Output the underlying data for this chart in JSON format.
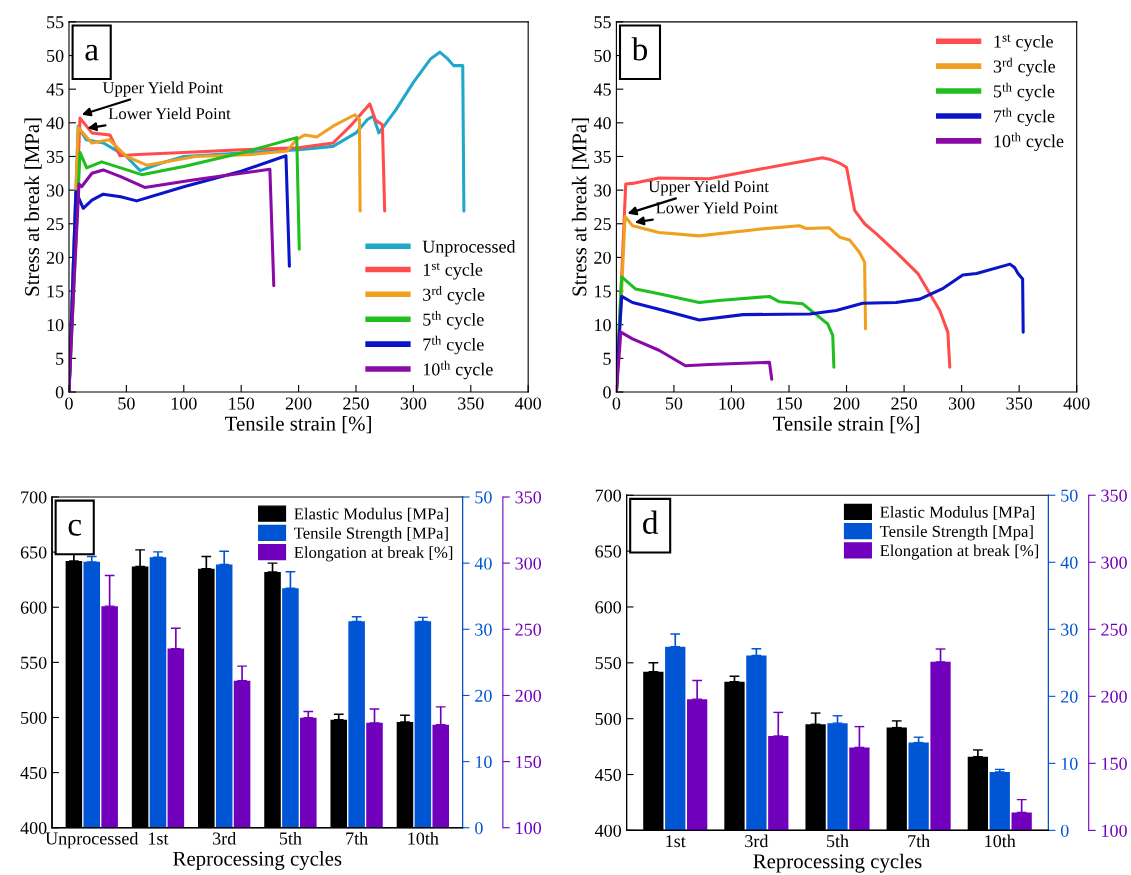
{
  "chart_data": [
    {
      "type": "line",
      "title": "a",
      "xlabel": "Tensile strain [%]",
      "ylabel": "Stress at break [MPa]",
      "xlim": [
        0,
        400
      ],
      "xticks": [
        0,
        50,
        100,
        150,
        200,
        250,
        300,
        350,
        400
      ],
      "ylim": [
        0,
        55
      ],
      "yticks": [
        0,
        5,
        10,
        15,
        20,
        25,
        30,
        35,
        40,
        45,
        50,
        55
      ],
      "legend": "bottom right",
      "annotations": [
        {
          "text": "Upper Yield Point",
          "x": 11,
          "y": 41.2
        },
        {
          "text": "Lower Yield Point",
          "x": 16,
          "y": 39.2
        }
      ],
      "series": [
        {
          "name": "Unprocessed",
          "color": "#1fa8c9",
          "x": [
            0,
            4,
            8,
            15,
            30,
            50,
            62,
            80,
            100,
            150,
            200,
            230,
            250,
            260,
            265,
            270,
            285,
            300,
            315,
            323,
            330,
            335,
            343,
            344
          ],
          "values": [
            0,
            20,
            39.5,
            37.5,
            37,
            35,
            32.9,
            34,
            35,
            35.5,
            36,
            36.5,
            38.5,
            40.5,
            41,
            38.5,
            42,
            46,
            49.5,
            50.5,
            49.5,
            48.5,
            48.5,
            26.9
          ]
        },
        {
          "name": "1$^{st}$ cycle",
          "color": "#ff4d4d",
          "x": [
            0,
            9.6,
            20,
            35.7,
            44.4,
            60,
            100,
            150,
            200,
            230,
            245,
            262,
            267,
            273,
            275
          ],
          "values": [
            0,
            40.7,
            38.5,
            38.2,
            35.1,
            35.3,
            35.6,
            36,
            36.3,
            37,
            39.5,
            42.8,
            40.4,
            39.7,
            26.9
          ]
        },
        {
          "name": "3$^{rd}$ cycle",
          "color": "#f0a01e",
          "x": [
            0,
            4,
            8,
            20,
            35,
            50,
            67.7,
            110,
            160,
            190,
            198,
            205.7,
            215.8,
            230,
            249,
            253,
            253.6
          ],
          "values": [
            0,
            20,
            39.3,
            37,
            37.5,
            35,
            33.7,
            35,
            35.3,
            35.8,
            37.5,
            38.2,
            37.9,
            39.5,
            41.2,
            40.5,
            26.9
          ]
        },
        {
          "name": "5$^{th}$ cycle",
          "color": "#1fbf1f",
          "x": [
            0,
            9.6,
            15.4,
            28.5,
            45,
            63.3,
            100,
            150,
            198.4,
            200.6
          ],
          "values": [
            0,
            35.6,
            33.3,
            34.2,
            33.3,
            32.3,
            33.5,
            35.5,
            37.8,
            21.2
          ]
        },
        {
          "name": "7$^{th}$ cycle",
          "color": "#0a14c8",
          "x": [
            0,
            3,
            6,
            12.4,
            20,
            29.8,
            45,
            59,
            100,
            150,
            189,
            192
          ],
          "values": [
            0,
            15,
            29.8,
            27.3,
            28.5,
            29.4,
            29,
            28.4,
            30.5,
            32.8,
            35.1,
            18.7
          ]
        },
        {
          "name": "10$^{th}$ cycle",
          "color": "#8a0aa8",
          "x": [
            0,
            4,
            8.7,
            11,
            20,
            29.8,
            45,
            66,
            108,
            150,
            175,
            178.4
          ],
          "values": [
            0,
            15,
            30.9,
            30.5,
            32.5,
            33,
            32,
            30.4,
            31.5,
            32.5,
            33.1,
            15.8
          ]
        }
      ]
    },
    {
      "type": "line",
      "title": "b",
      "xlabel": "Tensile strain [%]",
      "ylabel": "Stress at break [MPa]",
      "xlim": [
        0,
        400
      ],
      "xticks": [
        0,
        50,
        100,
        150,
        200,
        250,
        300,
        350,
        400
      ],
      "ylim": [
        0,
        55
      ],
      "yticks": [
        0,
        5,
        10,
        15,
        20,
        25,
        30,
        35,
        40,
        45,
        50,
        55
      ],
      "legend": "top right",
      "annotations": [
        {
          "text": "Upper Yield Point",
          "x": 9.6,
          "y": 26.5
        },
        {
          "text": "Lower Yield Point",
          "x": 16,
          "y": 25.2
        }
      ],
      "series": [
        {
          "name": "1$^{st}$ cycle",
          "color": "#ff4d4d",
          "x": [
            0,
            4,
            8.1,
            14,
            37,
            80.7,
            124,
            179,
            185,
            194,
            200,
            207,
            215.7,
            226,
            243,
            262,
            281,
            288,
            289.7
          ],
          "values": [
            0,
            15,
            30.9,
            31,
            31.8,
            31.7,
            33.1,
            34.8,
            34.6,
            34,
            33.4,
            27,
            25,
            23.5,
            20.8,
            17.6,
            12.1,
            8.9,
            3.7
          ]
        },
        {
          "name": "3$^{rd}$ cycle",
          "color": "#f0a01e",
          "x": [
            0,
            4,
            7.5,
            14,
            37,
            72,
            124,
            159,
            165,
            185,
            194,
            202.6,
            211,
            215.7,
            216.5
          ],
          "values": [
            0,
            13,
            26.1,
            24.7,
            23.7,
            23.2,
            24.2,
            24.7,
            24.3,
            24.4,
            23,
            22.6,
            20.8,
            19.3,
            9.4
          ]
        },
        {
          "name": "5$^{th}$ cycle",
          "color": "#1fbf1f",
          "x": [
            0,
            2,
            4.6,
            16.8,
            37,
            72,
            89,
            133,
            141.7,
            162,
            170.7,
            183.7,
            188,
            189
          ],
          "values": [
            0,
            8,
            17.1,
            15.3,
            14.6,
            13.3,
            13.6,
            14.2,
            13.4,
            13.1,
            11.9,
            10.1,
            8.4,
            3.7
          ]
        },
        {
          "name": "7$^{th}$ cycle",
          "color": "#0a14c8",
          "x": [
            0,
            2,
            4.6,
            14,
            37,
            72,
            110,
            168,
            191,
            214,
            243,
            263.6,
            284,
            301,
            313,
            342,
            346,
            349,
            353,
            353.5
          ],
          "values": [
            0,
            7,
            14.2,
            13.3,
            12.3,
            10.7,
            11.5,
            11.6,
            12.1,
            13.2,
            13.3,
            13.8,
            15.4,
            17.4,
            17.6,
            19,
            18.5,
            17.6,
            16.8,
            8.9
          ]
        },
        {
          "name": "10$^{th}$ cycle",
          "color": "#8a0aa8",
          "x": [
            0,
            2,
            3.8,
            14,
            37,
            60,
            80.7,
            133,
            135
          ],
          "values": [
            0,
            4.5,
            8.9,
            7.9,
            6.2,
            3.9,
            4.1,
            4.4,
            1.9
          ]
        }
      ]
    },
    {
      "type": "bar",
      "title": "c",
      "xlabel": "Reprocessing cycles",
      "categories": [
        "Unprocessed",
        "1st",
        "3rd",
        "5th",
        "7th",
        "10th"
      ],
      "ylim": [
        400,
        700
      ],
      "yticks": [
        400,
        450,
        500,
        550,
        600,
        650,
        700
      ],
      "y2lim": [
        0,
        50
      ],
      "y2ticks": [
        0,
        10,
        20,
        30,
        40,
        50
      ],
      "y3lim": [
        100,
        350
      ],
      "y3ticks": [
        100,
        150,
        200,
        250,
        300,
        350
      ],
      "legend": "top right",
      "series": [
        {
          "name": "Elastic Modulus [MPa]",
          "color": "#000000",
          "values": [
            642,
            637,
            635,
            632,
            498,
            496
          ],
          "errors": [
            [
              642,
              648
            ],
            [
              637,
              652
            ],
            [
              635,
              646
            ],
            [
              632,
              640
            ],
            [
              498,
              503
            ],
            [
              496,
              502
            ]
          ]
        },
        {
          "name": "Tensile Strength [MPa]",
          "color": "#0055d4",
          "axis": "y2",
          "values": [
            40.2,
            40.9,
            39.8,
            36.2,
            31.2,
            31.2
          ],
          "errors": [
            [
              40.2,
              41
            ],
            [
              40.9,
              41.7
            ],
            [
              39.8,
              41.8
            ],
            [
              36.2,
              38.7
            ],
            [
              31.2,
              31.9
            ],
            [
              31.2,
              31.8
            ]
          ]
        },
        {
          "name": "Elongation at break [%]",
          "color": "#7100bd",
          "axis": "y3",
          "values": [
            267.5,
            235.4,
            211.1,
            183.1,
            179.3,
            177.9
          ],
          "errors": [
            [
              267.5,
              290.7
            ],
            [
              235.4,
              250.8
            ],
            [
              211.1,
              222.2
            ],
            [
              183.1,
              187.9
            ],
            [
              179.3,
              189.8
            ],
            [
              177.9,
              191.4
            ]
          ]
        }
      ]
    },
    {
      "type": "bar",
      "title": "d",
      "xlabel": "Reprocessing cycles",
      "categories": [
        "1st",
        "3rd",
        "5th",
        "7th",
        "10th"
      ],
      "ylim": [
        400,
        700
      ],
      "yticks": [
        400,
        450,
        500,
        550,
        600,
        650,
        700
      ],
      "y2lim": [
        0,
        50
      ],
      "y2ticks": [
        0,
        10,
        20,
        30,
        40,
        50
      ],
      "y3lim": [
        100,
        350
      ],
      "y3ticks": [
        100,
        150,
        200,
        250,
        300,
        350
      ],
      "legend": "top right",
      "series": [
        {
          "name": "Elastic Modulus [MPa]",
          "color": "#000000",
          "values": [
            542,
            533,
            495,
            492,
            466
          ],
          "errors": [
            [
              542,
              550
            ],
            [
              533,
              538
            ],
            [
              495,
              505
            ],
            [
              492,
              498
            ],
            [
              466,
              472
            ]
          ]
        },
        {
          "name": "Tensile Strength [Mpa]",
          "color": "#0055d4",
          "axis": "y2",
          "values": [
            27.4,
            26.1,
            16,
            13.1,
            8.7
          ],
          "errors": [
            [
              27.4,
              29.3
            ],
            [
              26.1,
              27.1
            ],
            [
              16,
              17.1
            ],
            [
              13.1,
              13.9
            ],
            [
              8.7,
              9.1
            ]
          ]
        },
        {
          "name": "Elongation at break [%]",
          "color": "#7100bd",
          "axis": "y3",
          "values": [
            197.9,
            170.4,
            161.9,
            225.7,
            113.3
          ],
          "errors": [
            [
              197.9,
              211.8
            ],
            [
              170.4,
              188
            ],
            [
              161.9,
              177.4
            ],
            [
              225.7,
              235.3
            ],
            [
              113.3,
              122.9
            ]
          ]
        }
      ]
    }
  ]
}
